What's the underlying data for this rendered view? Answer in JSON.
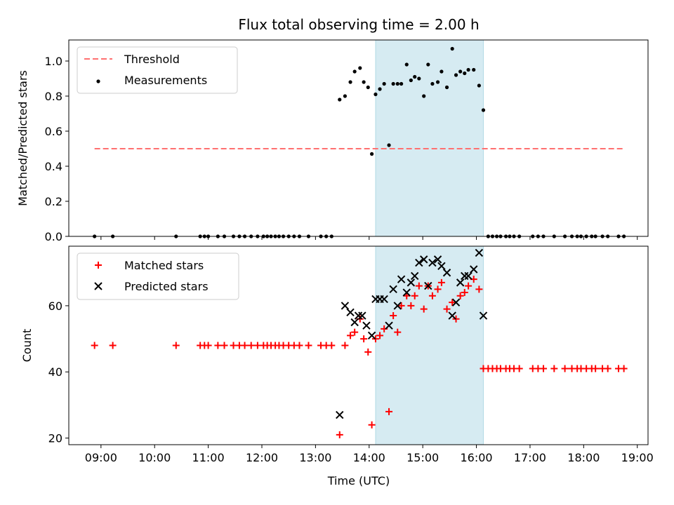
{
  "chart_data": {
    "title": "Flux total observing time = 2.00 h",
    "xlabel": "Time (UTC)",
    "x_unit": "hours UTC",
    "xlim": [
      8.4,
      19.2
    ],
    "xticks": [
      {
        "v": 9,
        "label": "09:00"
      },
      {
        "v": 10,
        "label": "10:00"
      },
      {
        "v": 11,
        "label": "11:00"
      },
      {
        "v": 12,
        "label": "12:00"
      },
      {
        "v": 13,
        "label": "13:00"
      },
      {
        "v": 14,
        "label": "14:00"
      },
      {
        "v": 15,
        "label": "15:00"
      },
      {
        "v": 16,
        "label": "16:00"
      },
      {
        "v": 17,
        "label": "17:00"
      },
      {
        "v": 18,
        "label": "18:00"
      },
      {
        "v": 19,
        "label": "19:00"
      }
    ],
    "highlight_span": [
      14.12,
      16.13
    ],
    "panels": [
      {
        "type": "scatter",
        "ylabel": "Matched/Predicted stars",
        "ylim": [
          0,
          1.12
        ],
        "yticks": [
          {
            "v": 0,
            "label": "0.0"
          },
          {
            "v": 0.2,
            "label": "0.2"
          },
          {
            "v": 0.4,
            "label": "0.4"
          },
          {
            "v": 0.6,
            "label": "0.6"
          },
          {
            "v": 0.8,
            "label": "0.8"
          },
          {
            "v": 1.0,
            "label": "1.0"
          }
        ],
        "threshold": {
          "name": "Threshold",
          "value": 0.5,
          "x": [
            8.88,
            18.75
          ],
          "color": "#ff7070"
        },
        "series": [
          {
            "name": "Measurements",
            "marker": "dot",
            "color": "#000000",
            "points": [
              [
                8.88,
                0
              ],
              [
                9.22,
                0
              ],
              [
                10.4,
                0
              ],
              [
                10.85,
                0
              ],
              [
                10.93,
                0
              ],
              [
                11.0,
                0
              ],
              [
                11.18,
                0
              ],
              [
                11.3,
                0
              ],
              [
                11.47,
                0
              ],
              [
                11.58,
                0
              ],
              [
                11.68,
                0
              ],
              [
                11.8,
                0
              ],
              [
                11.92,
                0
              ],
              [
                12.03,
                0
              ],
              [
                12.1,
                0
              ],
              [
                12.17,
                0
              ],
              [
                12.25,
                0
              ],
              [
                12.32,
                0
              ],
              [
                12.4,
                0
              ],
              [
                12.5,
                0
              ],
              [
                12.6,
                0
              ],
              [
                12.7,
                0
              ],
              [
                12.87,
                0
              ],
              [
                13.1,
                0
              ],
              [
                13.2,
                0
              ],
              [
                13.3,
                0
              ],
              [
                13.45,
                0.78
              ],
              [
                13.55,
                0.8
              ],
              [
                13.65,
                0.88
              ],
              [
                13.73,
                0.94
              ],
              [
                13.83,
                0.96
              ],
              [
                13.9,
                0.88
              ],
              [
                13.98,
                0.85
              ],
              [
                14.05,
                0.47
              ],
              [
                14.12,
                0.81
              ],
              [
                14.2,
                0.84
              ],
              [
                14.28,
                0.87
              ],
              [
                14.37,
                0.52
              ],
              [
                14.45,
                0.87
              ],
              [
                14.53,
                0.87
              ],
              [
                14.6,
                0.87
              ],
              [
                14.7,
                0.98
              ],
              [
                14.78,
                0.89
              ],
              [
                14.85,
                0.91
              ],
              [
                14.93,
                0.9
              ],
              [
                15.02,
                0.8
              ],
              [
                15.1,
                0.98
              ],
              [
                15.18,
                0.87
              ],
              [
                15.28,
                0.88
              ],
              [
                15.35,
                0.94
              ],
              [
                15.45,
                0.85
              ],
              [
                15.55,
                1.07
              ],
              [
                15.62,
                0.92
              ],
              [
                15.7,
                0.94
              ],
              [
                15.78,
                0.93
              ],
              [
                15.85,
                0.95
              ],
              [
                15.95,
                0.95
              ],
              [
                16.05,
                0.86
              ],
              [
                16.13,
                0.72
              ],
              [
                16.22,
                0
              ],
              [
                16.3,
                0
              ],
              [
                16.38,
                0
              ],
              [
                16.45,
                0
              ],
              [
                16.55,
                0
              ],
              [
                16.62,
                0
              ],
              [
                16.7,
                0
              ],
              [
                16.8,
                0
              ],
              [
                17.05,
                0
              ],
              [
                17.15,
                0
              ],
              [
                17.25,
                0
              ],
              [
                17.45,
                0
              ],
              [
                17.65,
                0
              ],
              [
                17.78,
                0
              ],
              [
                17.88,
                0
              ],
              [
                17.95,
                0
              ],
              [
                18.05,
                0
              ],
              [
                18.15,
                0
              ],
              [
                18.22,
                0
              ],
              [
                18.35,
                0
              ],
              [
                18.45,
                0
              ],
              [
                18.65,
                0
              ],
              [
                18.75,
                0
              ]
            ]
          }
        ]
      },
      {
        "type": "scatter",
        "ylabel": "Count",
        "ylim": [
          18,
          78
        ],
        "yticks": [
          {
            "v": 20,
            "label": "20"
          },
          {
            "v": 40,
            "label": "40"
          },
          {
            "v": 60,
            "label": "60"
          }
        ],
        "series": [
          {
            "name": "Matched stars",
            "marker": "plus",
            "color": "#ff0000",
            "points": [
              [
                8.88,
                48
              ],
              [
                9.22,
                48
              ],
              [
                10.4,
                48
              ],
              [
                10.85,
                48
              ],
              [
                10.93,
                48
              ],
              [
                11.0,
                48
              ],
              [
                11.18,
                48
              ],
              [
                11.3,
                48
              ],
              [
                11.47,
                48
              ],
              [
                11.58,
                48
              ],
              [
                11.68,
                48
              ],
              [
                11.8,
                48
              ],
              [
                11.92,
                48
              ],
              [
                12.03,
                48
              ],
              [
                12.1,
                48
              ],
              [
                12.17,
                48
              ],
              [
                12.25,
                48
              ],
              [
                12.32,
                48
              ],
              [
                12.4,
                48
              ],
              [
                12.5,
                48
              ],
              [
                12.6,
                48
              ],
              [
                12.7,
                48
              ],
              [
                12.87,
                48
              ],
              [
                13.1,
                48
              ],
              [
                13.2,
                48
              ],
              [
                13.3,
                48
              ],
              [
                13.45,
                21
              ],
              [
                13.55,
                48
              ],
              [
                13.65,
                51
              ],
              [
                13.73,
                52
              ],
              [
                13.83,
                56
              ],
              [
                13.9,
                50
              ],
              [
                13.98,
                46
              ],
              [
                14.05,
                24
              ],
              [
                14.12,
                50
              ],
              [
                14.2,
                51
              ],
              [
                14.28,
                53
              ],
              [
                14.37,
                28
              ],
              [
                14.45,
                57
              ],
              [
                14.53,
                52
              ],
              [
                14.6,
                60
              ],
              [
                14.7,
                63
              ],
              [
                14.78,
                60
              ],
              [
                14.85,
                63
              ],
              [
                14.93,
                66
              ],
              [
                15.02,
                59
              ],
              [
                15.1,
                66
              ],
              [
                15.18,
                63
              ],
              [
                15.28,
                65
              ],
              [
                15.35,
                67
              ],
              [
                15.45,
                59
              ],
              [
                15.55,
                61
              ],
              [
                15.62,
                56
              ],
              [
                15.7,
                63
              ],
              [
                15.78,
                64
              ],
              [
                15.85,
                66
              ],
              [
                15.95,
                68
              ],
              [
                16.05,
                65
              ],
              [
                16.13,
                41
              ],
              [
                16.22,
                41
              ],
              [
                16.3,
                41
              ],
              [
                16.38,
                41
              ],
              [
                16.45,
                41
              ],
              [
                16.55,
                41
              ],
              [
                16.62,
                41
              ],
              [
                16.7,
                41
              ],
              [
                16.8,
                41
              ],
              [
                17.05,
                41
              ],
              [
                17.15,
                41
              ],
              [
                17.25,
                41
              ],
              [
                17.45,
                41
              ],
              [
                17.65,
                41
              ],
              [
                17.78,
                41
              ],
              [
                17.88,
                41
              ],
              [
                17.95,
                41
              ],
              [
                18.05,
                41
              ],
              [
                18.15,
                41
              ],
              [
                18.22,
                41
              ],
              [
                18.35,
                41
              ],
              [
                18.45,
                41
              ],
              [
                18.65,
                41
              ],
              [
                18.75,
                41
              ]
            ]
          },
          {
            "name": "Predicted stars",
            "marker": "x",
            "color": "#000000",
            "points": [
              [
                13.45,
                27
              ],
              [
                13.55,
                60
              ],
              [
                13.65,
                58
              ],
              [
                13.73,
                55
              ],
              [
                13.8,
                57
              ],
              [
                13.87,
                57
              ],
              [
                13.95,
                54
              ],
              [
                14.05,
                51
              ],
              [
                14.12,
                62
              ],
              [
                14.2,
                62
              ],
              [
                14.28,
                62
              ],
              [
                14.37,
                54
              ],
              [
                14.45,
                65
              ],
              [
                14.53,
                60
              ],
              [
                14.6,
                68
              ],
              [
                14.7,
                64
              ],
              [
                14.78,
                67
              ],
              [
                14.85,
                69
              ],
              [
                14.93,
                73
              ],
              [
                15.02,
                74
              ],
              [
                15.1,
                66
              ],
              [
                15.18,
                73
              ],
              [
                15.28,
                74
              ],
              [
                15.35,
                72
              ],
              [
                15.45,
                70
              ],
              [
                15.55,
                57
              ],
              [
                15.62,
                61
              ],
              [
                15.7,
                67
              ],
              [
                15.78,
                69
              ],
              [
                15.85,
                69
              ],
              [
                15.95,
                71
              ],
              [
                16.05,
                76
              ],
              [
                16.13,
                57
              ]
            ]
          }
        ]
      }
    ]
  }
}
